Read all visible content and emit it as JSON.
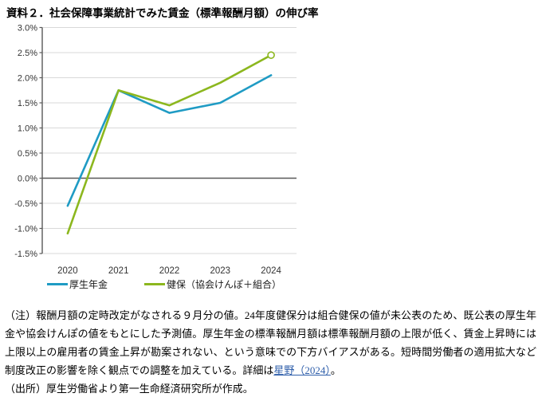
{
  "title": "資料２．社会保障事業統計でみた賃金（標準報酬月額）の伸び率",
  "chart_data": {
    "type": "line",
    "categories": [
      "2020",
      "2021",
      "2022",
      "2023",
      "2024"
    ],
    "series": [
      {
        "name": "厚生年金",
        "color": "#1F9BC4",
        "values": [
          -0.55,
          1.75,
          1.3,
          1.5,
          2.05
        ]
      },
      {
        "name": "健保（協会けんぽ＋組合）",
        "color": "#8CB71E",
        "values": [
          -1.1,
          1.75,
          1.45,
          1.9,
          2.45
        ],
        "last_point_marker": "open-circle"
      }
    ],
    "ylim": [
      -1.5,
      3.0
    ],
    "yticks": [
      3.0,
      2.5,
      2.0,
      1.5,
      1.0,
      0.5,
      0.0,
      -0.5,
      -1.0,
      -1.5
    ],
    "ytick_labels": [
      "3.0%",
      "2.5%",
      "2.0%",
      "1.5%",
      "1.0%",
      "0.5%",
      "0.0%",
      "-0.5%",
      "-1.0%",
      "-1.5%"
    ],
    "grid": true,
    "grid_color": "#D9D9D9",
    "axis_color": "#595959",
    "legend_position": "bottom"
  },
  "notes": {
    "note_before": "（注）報酬月額の定時改定がなされる９月分の値。24年度健保分は組合健保の値が未公表のため、既公表の厚生年金や協会けんぽの値をもとにした予測値。厚生年金の標準報酬月額は標準報酬月額の上限が低く、賃金上昇時には上限以上の雇用者の賃金上昇が勘案されない、という意味での下方バイアスがある。短時間労働者の適用拡大など制度改正の影響を除く観点での調整を加えている。詳細は",
    "note_link": "星野（2024）",
    "note_after": "。",
    "source": "（出所）厚生労働省より第一生命経済研究所が作成。",
    "link_color": "#2E5EAA"
  }
}
